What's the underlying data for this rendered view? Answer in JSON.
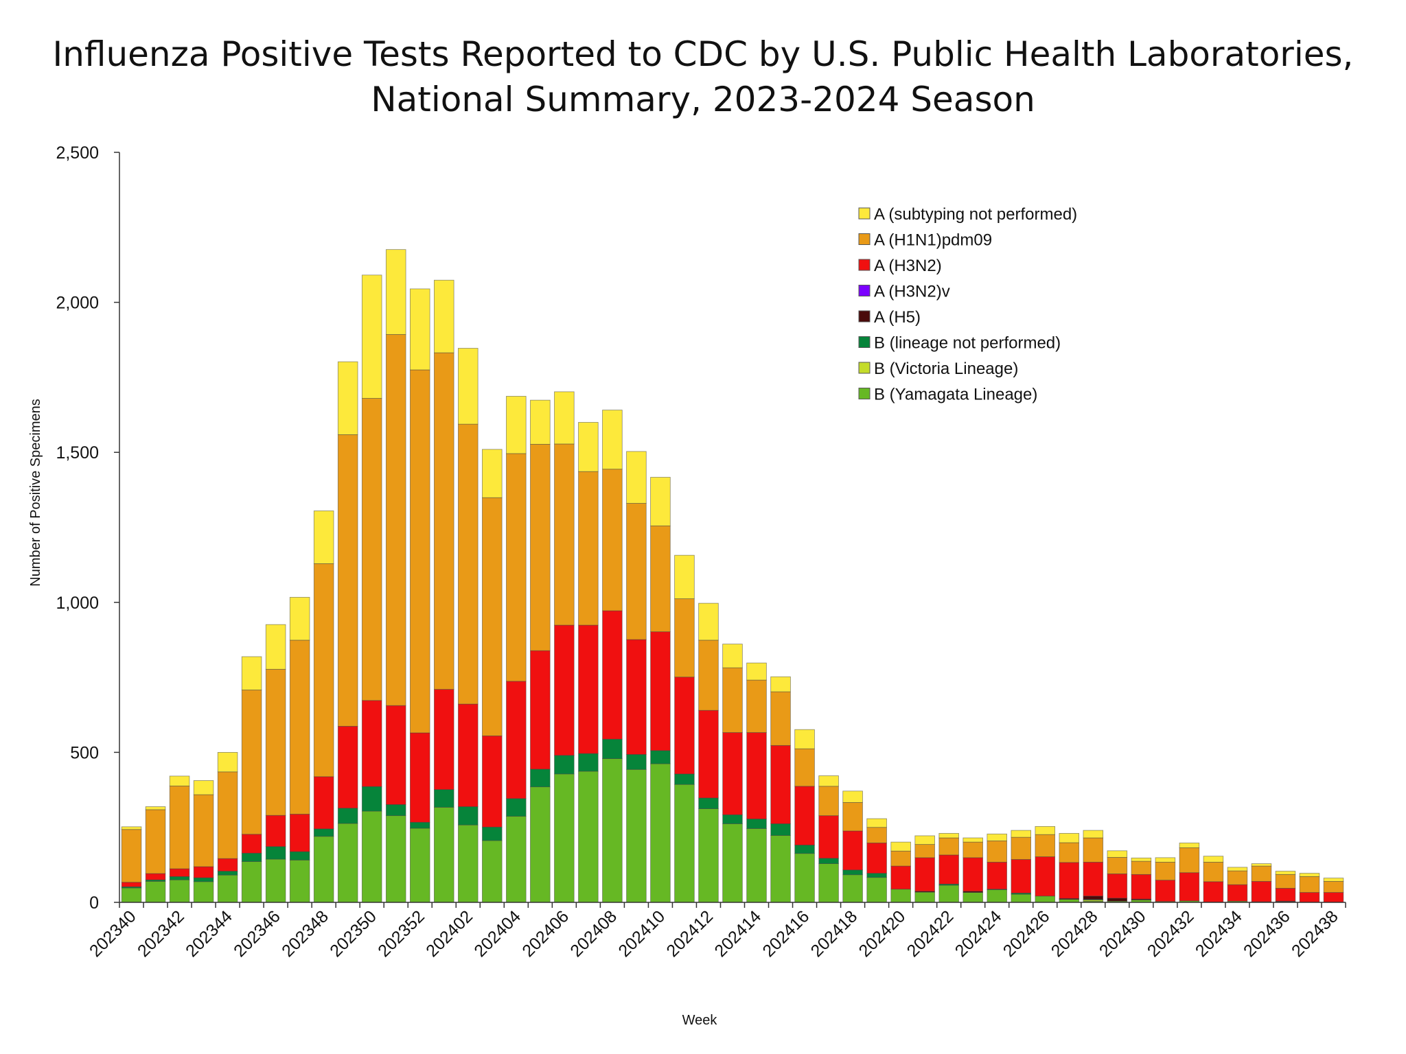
{
  "chart_data": {
    "type": "bar",
    "stacked": true,
    "title": "Influenza Positive Tests Reported to CDC by U.S. Public Health Laboratories, National Summary, 2023-2024 Season",
    "title_lines": [
      "Influenza Positive Tests Reported to CDC by U.S. Public Health Laboratories,",
      "National Summary, 2023-2024 Season"
    ],
    "xlabel": "Week",
    "ylabel": "Number of Positive Specimens",
    "ylim": [
      0,
      2500
    ],
    "yticks": [
      0,
      500,
      1000,
      1500,
      2000,
      2500
    ],
    "ytick_labels": [
      "0",
      "500",
      "1,000",
      "1,500",
      "2,000",
      "2,500"
    ],
    "grid": false,
    "legend_position": "top-right",
    "categories": [
      "202340",
      "202341",
      "202342",
      "202343",
      "202344",
      "202345",
      "202346",
      "202347",
      "202348",
      "202349",
      "202350",
      "202351",
      "202352",
      "202401",
      "202402",
      "202403",
      "202404",
      "202405",
      "202406",
      "202407",
      "202408",
      "202409",
      "202410",
      "202411",
      "202412",
      "202413",
      "202414",
      "202415",
      "202416",
      "202417",
      "202418",
      "202419",
      "202420",
      "202421",
      "202422",
      "202423",
      "202424",
      "202425",
      "202426",
      "202427",
      "202428",
      "202429",
      "202430",
      "202431",
      "202432",
      "202433",
      "202434",
      "202435",
      "202436",
      "202437",
      "202438"
    ],
    "xtick_labels": [
      "202340",
      "202342",
      "202344",
      "202346",
      "202348",
      "202350",
      "202352",
      "202402",
      "202404",
      "202406",
      "202408",
      "202410",
      "202412",
      "202414",
      "202416",
      "202418",
      "202420",
      "202422",
      "202424",
      "202426",
      "202428",
      "202430",
      "202432",
      "202434",
      "202436",
      "202438"
    ],
    "legend_order": [
      "A (subtyping not performed)",
      "A (H1N1)pdm09",
      "A (H3N2)",
      "A (H3N2)v",
      "A (H5)",
      "B (lineage not performed)",
      "B (Victoria Lineage)",
      "B (Yamagata Lineage)"
    ],
    "series": [
      {
        "name": "B (Yamagata Lineage)",
        "color": "#66b824",
        "values": [
          48,
          70,
          75,
          69,
          91,
          136,
          144,
          141,
          220,
          263,
          304,
          289,
          247,
          317,
          258,
          206,
          287,
          385,
          428,
          437,
          479,
          443,
          462,
          393,
          312,
          262,
          246,
          223,
          163,
          129,
          92,
          83,
          44,
          34,
          57,
          33,
          42,
          27,
          21,
          10,
          4,
          4,
          8,
          3,
          5,
          1,
          4,
          2,
          2,
          0,
          0
        ]
      },
      {
        "name": "B (Victoria Lineage)",
        "color": "#c4dc2a",
        "values": [
          0,
          0,
          0,
          0,
          0,
          0,
          0,
          0,
          0,
          0,
          0,
          0,
          0,
          0,
          0,
          0,
          0,
          0,
          0,
          0,
          0,
          0,
          0,
          0,
          0,
          0,
          0,
          0,
          0,
          0,
          0,
          0,
          0,
          0,
          0,
          0,
          0,
          0,
          0,
          0,
          4,
          0,
          0,
          0,
          0,
          0,
          0,
          0,
          0,
          0,
          0
        ]
      },
      {
        "name": "B (lineage not performed)",
        "color": "#06843a",
        "values": [
          4,
          5,
          11,
          13,
          13,
          28,
          42,
          28,
          25,
          51,
          82,
          37,
          20,
          59,
          61,
          45,
          59,
          59,
          62,
          59,
          65,
          50,
          44,
          35,
          36,
          30,
          32,
          39,
          28,
          18,
          16,
          14,
          0,
          0,
          4,
          0,
          2,
          4,
          0,
          0,
          2,
          0,
          0,
          0,
          0,
          0,
          0,
          0,
          0,
          0,
          0
        ]
      },
      {
        "name": "A (H5)",
        "color": "#4a0a0a",
        "values": [
          0,
          0,
          0,
          0,
          0,
          0,
          0,
          0,
          0,
          0,
          0,
          0,
          0,
          0,
          0,
          0,
          0,
          0,
          0,
          0,
          0,
          0,
          0,
          0,
          0,
          0,
          0,
          0,
          0,
          0,
          0,
          0,
          0,
          3,
          0,
          4,
          0,
          0,
          0,
          3,
          11,
          10,
          3,
          0,
          0,
          0,
          0,
          0,
          2,
          0,
          0
        ]
      },
      {
        "name": "A (H3N2)v",
        "color": "#7b00ff",
        "values": [
          0,
          0,
          0,
          0,
          0,
          0,
          0,
          0,
          0,
          0,
          0,
          0,
          0,
          0,
          0,
          0,
          0,
          0,
          0,
          0,
          0,
          0,
          0,
          0,
          0,
          0,
          0,
          0,
          0,
          0,
          0,
          0,
          0,
          0,
          0,
          0,
          0,
          0,
          0,
          0,
          0,
          0,
          0,
          0,
          0,
          0,
          0,
          0,
          0,
          0,
          0
        ]
      },
      {
        "name": "A (H3N2)",
        "color": "#f01010",
        "values": [
          15,
          21,
          26,
          37,
          42,
          63,
          104,
          125,
          174,
          273,
          287,
          330,
          298,
          334,
          342,
          304,
          391,
          395,
          434,
          428,
          428,
          383,
          396,
          323,
          292,
          274,
          288,
          261,
          196,
          142,
          130,
          101,
          77,
          112,
          97,
          112,
          90,
          112,
          131,
          120,
          113,
          81,
          82,
          71,
          94,
          68,
          55,
          68,
          43,
          33,
          33
        ]
      },
      {
        "name": "A (H1N1)pdm09",
        "color": "#e99a17",
        "values": [
          176,
          213,
          276,
          240,
          289,
          481,
          487,
          580,
          710,
          972,
          1007,
          1237,
          1210,
          1122,
          933,
          794,
          759,
          688,
          604,
          512,
          472,
          454,
          353,
          261,
          234,
          216,
          175,
          179,
          125,
          98,
          95,
          52,
          50,
          44,
          57,
          52,
          71,
          74,
          74,
          66,
          81,
          55,
          44,
          60,
          83,
          65,
          46,
          51,
          46,
          53,
          37
        ]
      },
      {
        "name": "A (subtyping not performed)",
        "color": "#fde93b",
        "values": [
          9,
          10,
          33,
          47,
          65,
          111,
          149,
          143,
          176,
          243,
          411,
          283,
          270,
          242,
          253,
          161,
          191,
          147,
          174,
          164,
          197,
          173,
          162,
          145,
          123,
          79,
          57,
          50,
          64,
          35,
          38,
          29,
          30,
          29,
          15,
          14,
          23,
          23,
          27,
          31,
          25,
          22,
          11,
          15,
          16,
          20,
          12,
          8,
          11,
          11,
          11
        ]
      }
    ]
  }
}
